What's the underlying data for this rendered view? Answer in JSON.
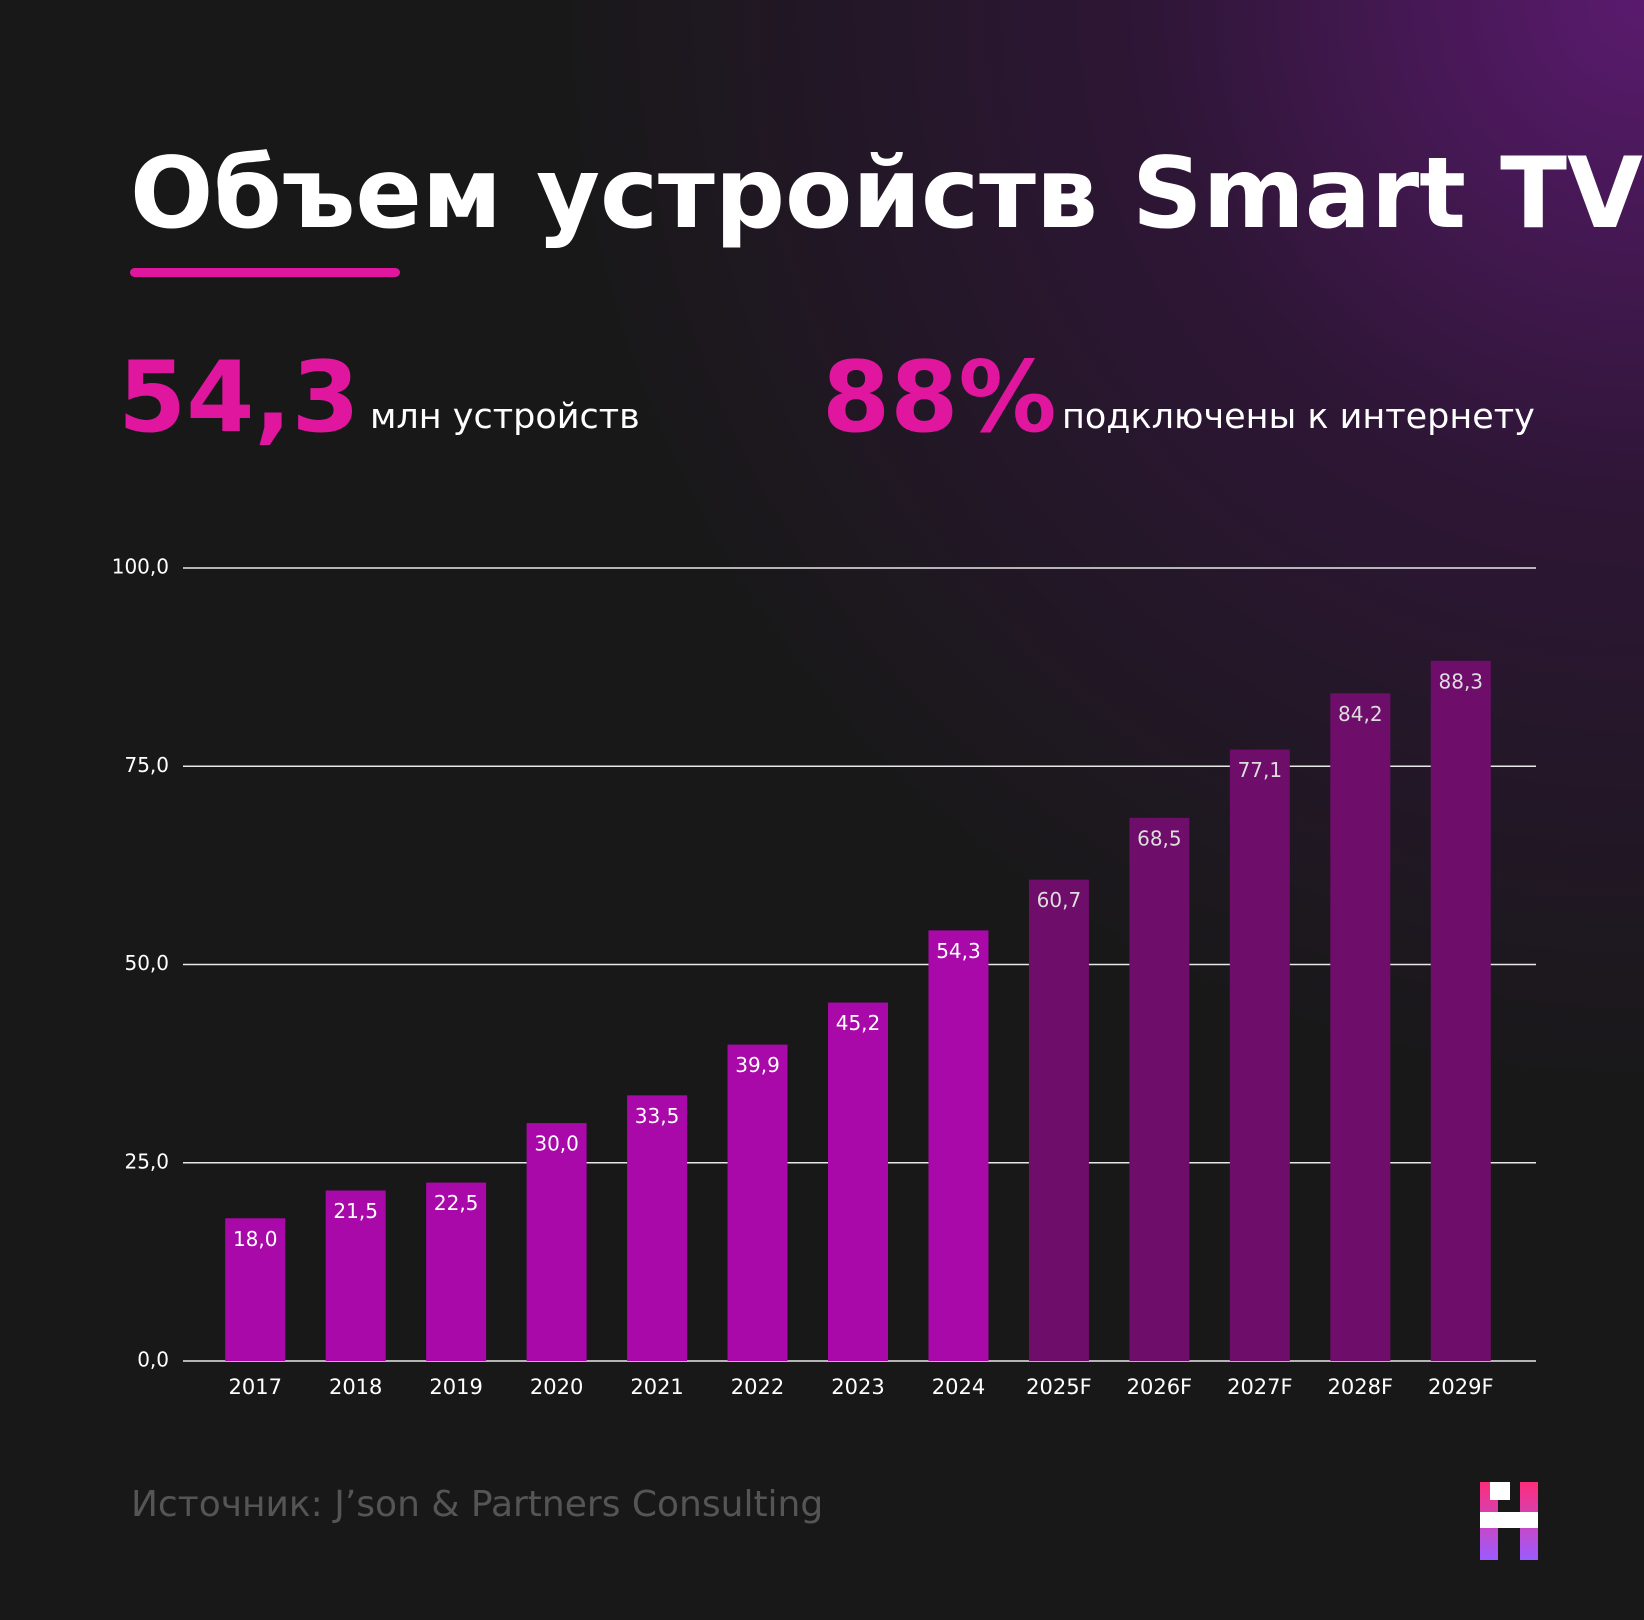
{
  "chart_data": {
    "type": "bar",
    "title": "Объем устройств Smart TV",
    "stats": [
      {
        "value": "54,3",
        "label": "млн устройств"
      },
      {
        "value": "88%",
        "label": "подключены к интернету"
      }
    ],
    "categories": [
      "2017",
      "2018",
      "2019",
      "2020",
      "2021",
      "2022",
      "2023",
      "2024",
      "2025F",
      "2026F",
      "2027F",
      "2028F",
      "2029F"
    ],
    "values": [
      18.0,
      21.5,
      22.5,
      30.0,
      33.5,
      39.9,
      45.2,
      54.3,
      60.7,
      68.5,
      77.1,
      84.2,
      88.3
    ],
    "value_labels": [
      "18,0",
      "21,5",
      "22,5",
      "30,0",
      "33,5",
      "39,9",
      "45,2",
      "54,3",
      "60,7",
      "68,5",
      "77,1",
      "84,2",
      "88,3"
    ],
    "colors": [
      "#a909a9",
      "#a909a9",
      "#a909a9",
      "#a909a9",
      "#a909a9",
      "#a909a9",
      "#a909a9",
      "#a909a9",
      "#6e0d6a",
      "#6e0d6a",
      "#6e0d6a",
      "#6e0d6a",
      "#6e0d6a"
    ],
    "ylim": [
      0,
      100
    ],
    "yticks": [
      {
        "value": 0,
        "label": "0,0"
      },
      {
        "value": 25,
        "label": "25,0"
      },
      {
        "value": 50,
        "label": "50,0"
      },
      {
        "value": 75,
        "label": "75,0"
      },
      {
        "value": 100,
        "label": "100,0"
      }
    ],
    "grid": true,
    "source": "Источник: J’son & Partners Consulting"
  }
}
